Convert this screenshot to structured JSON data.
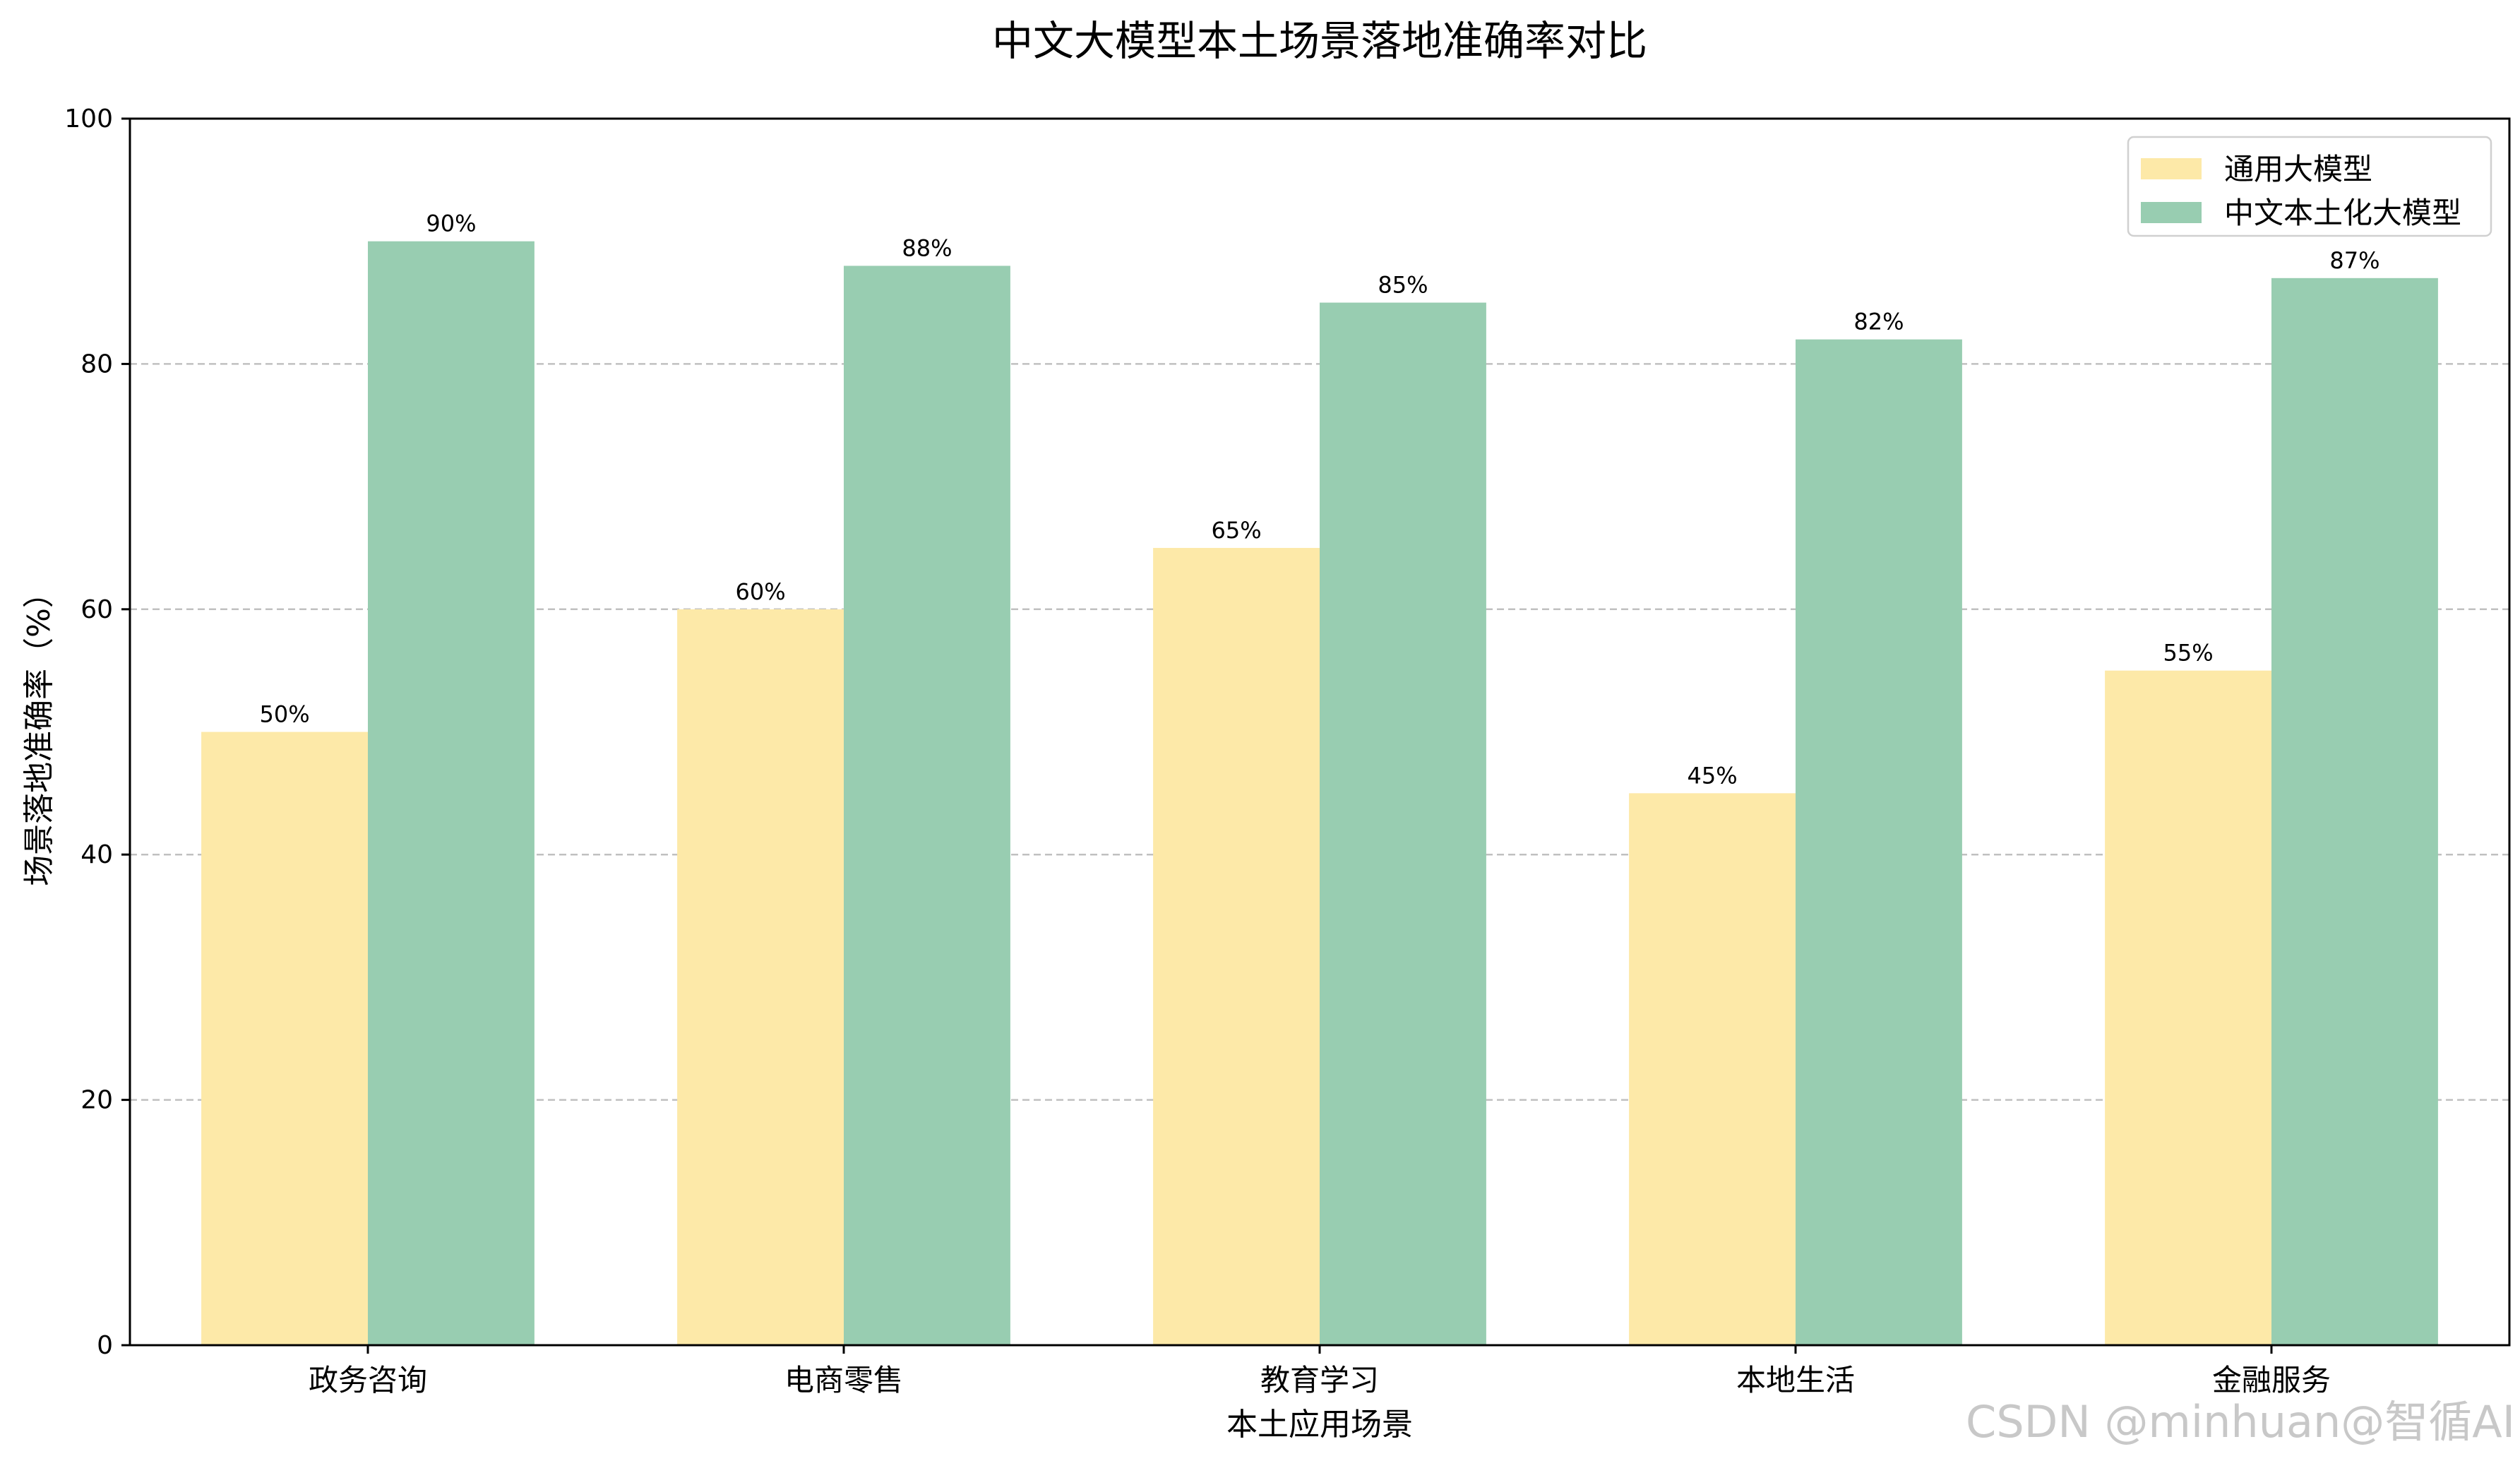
{
  "chart_data": {
    "type": "bar",
    "title": "中文大模型本土场景落地准确率对比",
    "xlabel": "本土应用场景",
    "ylabel": "场景落地准确率（%）",
    "categories": [
      "政务咨询",
      "电商零售",
      "教育学习",
      "本地生活",
      "金融服务"
    ],
    "series": [
      {
        "name": "通用大模型",
        "values": [
          50,
          60,
          65,
          45,
          55
        ],
        "color": "#fde9a8"
      },
      {
        "name": "中文本土化大模型",
        "values": [
          90,
          88,
          85,
          82,
          87
        ],
        "color": "#98cdb1"
      }
    ],
    "ylim": [
      0,
      100
    ],
    "yticks": [
      0,
      20,
      40,
      60,
      80,
      100
    ],
    "grid": "y-dashed",
    "legend_position": "top-right",
    "value_label_suffix": "%"
  },
  "watermark": "CSDN @minhuan@智循AI"
}
